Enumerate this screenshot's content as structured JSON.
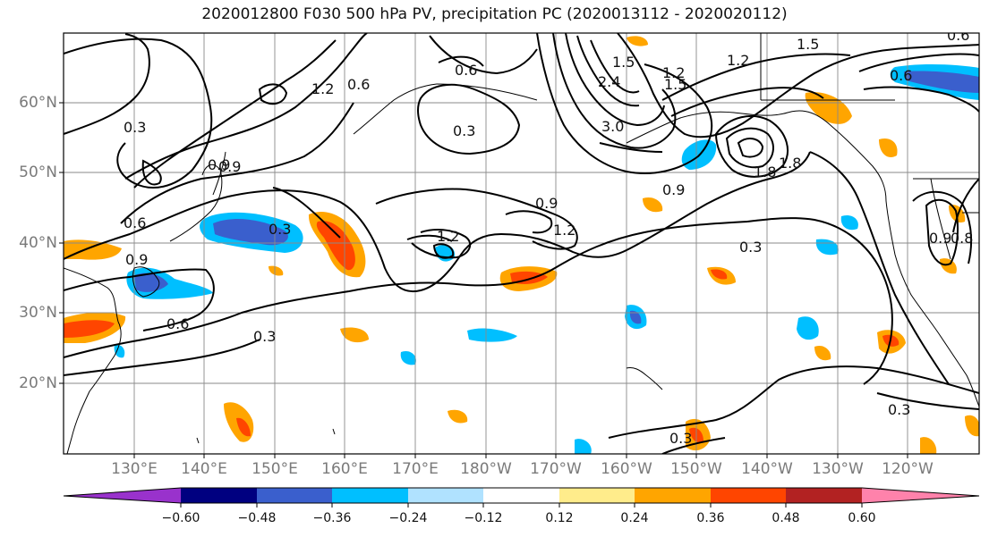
{
  "title": "2020012800 F030 500 hPa PV, precipitation PC (2020013112 - 2020020112)",
  "map": {
    "projection": "Plate Carree",
    "lon_range": [
      "120°E",
      "110°W"
    ],
    "lat_range": [
      "10°N",
      "70°N"
    ],
    "lat_labels": [
      "60°N",
      "50°N",
      "40°N",
      "30°N",
      "20°N"
    ],
    "lon_labels": [
      "130°E",
      "140°E",
      "150°E",
      "160°E",
      "170°E",
      "180°W",
      "170°W",
      "160°W",
      "150°W",
      "140°W",
      "130°W",
      "120°W"
    ],
    "gridlines": true,
    "pv_contours": {
      "field": "500 hPa PV",
      "labels": [
        "0.3",
        "0.6",
        "0.9",
        "1.2",
        "1.5",
        "1.8",
        "2.4",
        "3.0",
        "1.2",
        "0.9",
        "0.3",
        "0.6",
        "0.3",
        "0.9",
        "1.2",
        "0.6",
        "0.6",
        "0.3",
        "0.3",
        "1.5",
        "1.2",
        "0.6",
        "0.9",
        "0.3",
        "0.9",
        "0.8",
        "1.5",
        "1.2",
        "0.9",
        "0.6",
        "0.3",
        "1.8"
      ]
    },
    "precipitation_pc": {
      "field": "precipitation PC",
      "colors": {
        "neg_060": "#9932cc",
        "neg_048": "#000080",
        "neg_036": "#3a5fcd",
        "neg_024": "#00bfff",
        "neg_012": "#b0e2ff",
        "neutral": "#ffffff",
        "pos_012": "#ffec8b",
        "pos_024": "#ffa500",
        "pos_036": "#ff4500",
        "pos_048": "#b22222",
        "pos_060": "#ff82ab"
      }
    }
  },
  "colorbar": {
    "ticks": [
      "−0.60",
      "−0.48",
      "−0.36",
      "−0.24",
      "−0.12",
      "0.12",
      "0.24",
      "0.36",
      "0.48",
      "0.60"
    ],
    "colors": [
      "#9932cc",
      "#000080",
      "#3a5fcd",
      "#00bfff",
      "#b0e2ff",
      "#ffffff",
      "#ffec8b",
      "#ffa500",
      "#ff4500",
      "#b22222",
      "#ff82ab"
    ],
    "extend": "both"
  }
}
